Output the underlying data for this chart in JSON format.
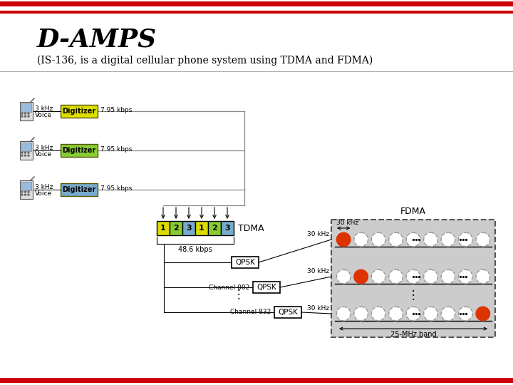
{
  "title": "D-AMPS",
  "subtitle": "(IS-136, is a digital cellular phone system using TDMA and FDMA)",
  "title_fontsize": 26,
  "subtitle_fontsize": 10,
  "bg_color": "#ffffff",
  "red_line_color": "#cc0000",
  "digitizer_colors": [
    "#dddd00",
    "#88cc33",
    "#77aacc"
  ],
  "tdma_colors": [
    "#dddd00",
    "#88cc33",
    "#77aacc",
    "#dddd00",
    "#88cc33",
    "#77aacc"
  ],
  "tdma_labels": [
    "1",
    "2",
    "3",
    "1",
    "2",
    "3"
  ],
  "orange_color": "#dd3300",
  "gray_bg": "#cccccc",
  "qpsk_box_color": "#ffffff",
  "qpsk_box_edge": "#000000",
  "line_color": "#888888"
}
